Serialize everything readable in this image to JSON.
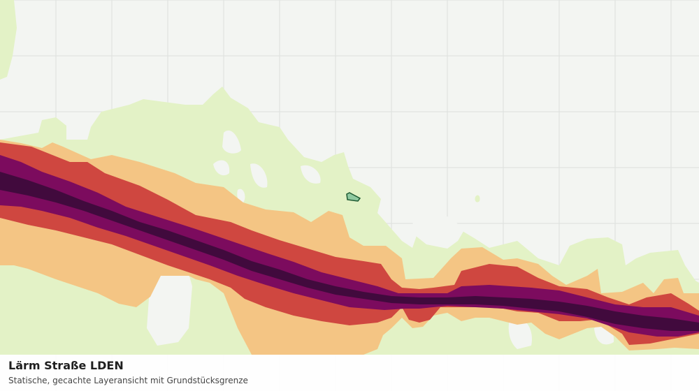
{
  "map": {
    "layer_title": "Lärm Straße LDEN",
    "layer_subtitle": "Statische, gecachte Layeransicht mit Grundstücksgrenze",
    "colors": {
      "background": "#f3f5f2",
      "grid": "#dde0dc",
      "noise_low": "#e3f2c6",
      "noise_mid_low": "#f4c584",
      "noise_mid": "#cf4740",
      "noise_high": "#7c0b5e",
      "noise_highest": "#410a3d",
      "parcel": "#1e5a32"
    },
    "parcel_icon": "parcel-boundary-marker"
  }
}
